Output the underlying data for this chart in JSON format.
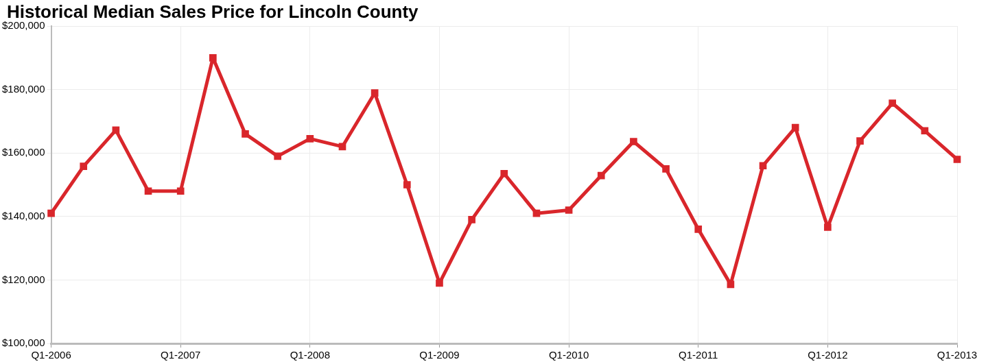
{
  "chart_data": {
    "type": "line",
    "title": "Historical Median Sales Price for Lincoln County",
    "categories": [
      "Q1-2006",
      null,
      null,
      null,
      "Q1-2007",
      null,
      null,
      null,
      "Q1-2008",
      null,
      null,
      null,
      "Q1-2009",
      null,
      null,
      null,
      "Q1-2010",
      null,
      null,
      null,
      "Q1-2011",
      null,
      null,
      null,
      "Q1-2012",
      null,
      null,
      null,
      "Q1-2013"
    ],
    "series": [
      {
        "color": "#d9262b",
        "values": [
          141000,
          155800,
          167200,
          148000,
          148000,
          190000,
          166000,
          159000,
          164500,
          162000,
          178900,
          150000,
          119000,
          139000,
          153500,
          141000,
          142000,
          152900,
          163600,
          155000,
          136000,
          118600,
          156000,
          168000,
          136600,
          163800,
          175700,
          167000,
          158000
        ]
      }
    ],
    "ylim": [
      100000,
      200000
    ],
    "yticks": [
      {
        "value": 100000,
        "label": "$100,000"
      },
      {
        "value": 120000,
        "label": "$120,000"
      },
      {
        "value": 140000,
        "label": "$140,000"
      },
      {
        "value": 160000,
        "label": "$160,000"
      },
      {
        "value": 180000,
        "label": "$180,000"
      },
      {
        "value": 200000,
        "label": "$200,000"
      }
    ],
    "grid": true,
    "legend": false,
    "marker": "square",
    "line_style": "solid"
  }
}
